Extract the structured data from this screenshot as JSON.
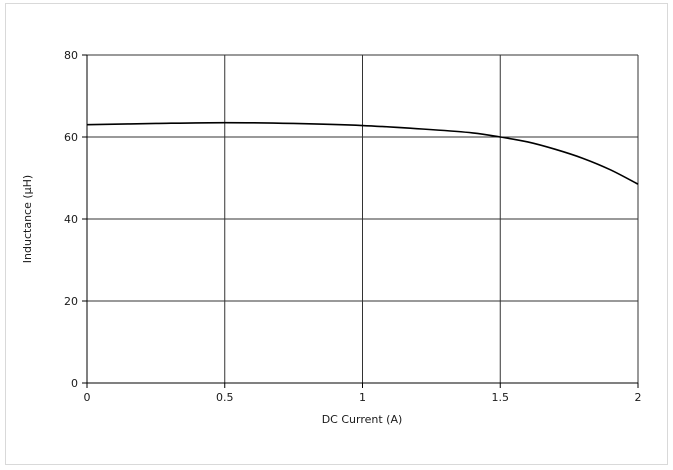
{
  "chart_data": {
    "type": "line",
    "title": "",
    "xlabel": "DC Current (A)",
    "ylabel": "Inductance (µH)",
    "xlim": [
      0,
      2
    ],
    "ylim": [
      0,
      80
    ],
    "xticks": [
      0,
      0.5,
      1,
      1.5,
      2
    ],
    "xtick_labels": [
      "0",
      "0.5",
      "1",
      "1.5",
      "2"
    ],
    "yticks": [
      0,
      20,
      40,
      60,
      80
    ],
    "ytick_labels": [
      "0",
      "20",
      "40",
      "60",
      "80"
    ],
    "grid": true,
    "series": [
      {
        "x": [
          0,
          0.25,
          0.5,
          0.75,
          1.0,
          1.25,
          1.4,
          1.5,
          1.6,
          1.7,
          1.8,
          1.9,
          2.0
        ],
        "values": [
          63,
          63.3,
          63.5,
          63.3,
          62.8,
          61.8,
          61,
          60,
          58.8,
          57,
          54.8,
          52,
          48.5
        ]
      }
    ],
    "colors": {
      "line": "#000000",
      "grid": "#333333",
      "axis": "#000000"
    }
  }
}
